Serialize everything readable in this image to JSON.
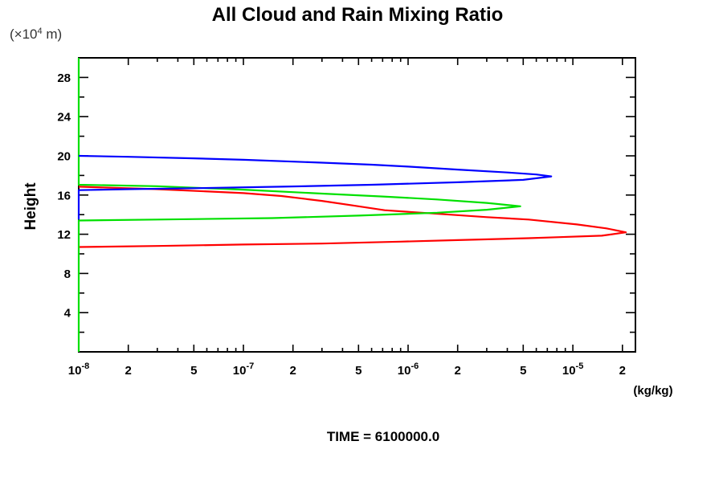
{
  "title": "All Cloud and Rain Mixing Ratio",
  "labels": {
    "y_axis": "Height",
    "y_unit": {
      "pre": "(×10",
      "exp": "4",
      "post": " m)"
    },
    "x_unit": "(kg/kg)",
    "time": "TIME = 6100000.0"
  },
  "colors": {
    "frame": "#000000",
    "series_red": "#ff0000",
    "series_green": "#00e000",
    "series_blue": "#0000ff"
  },
  "chart_data": {
    "type": "line",
    "title": "All Cloud and Rain Mixing Ratio",
    "xlabel": "(kg/kg)",
    "ylabel": "Height (×10^4 m)",
    "x_scale": "log",
    "xlim": [
      1e-08,
      2.4e-05
    ],
    "ylim": [
      0,
      30
    ],
    "grid": false,
    "legend": false,
    "annotation": "TIME = 6100000.0",
    "x_ticks": [
      {
        "v": 1e-08,
        "exp": "-8",
        "major": true
      },
      {
        "v": 2e-08,
        "label": "2",
        "major": true
      },
      {
        "v": 3e-08
      },
      {
        "v": 4e-08
      },
      {
        "v": 5e-08,
        "label": "5",
        "major": true
      },
      {
        "v": 6e-08
      },
      {
        "v": 7e-08
      },
      {
        "v": 8e-08
      },
      {
        "v": 9e-08
      },
      {
        "v": 1e-07,
        "exp": "-7",
        "major": true
      },
      {
        "v": 2e-07,
        "label": "2",
        "major": true
      },
      {
        "v": 3e-07
      },
      {
        "v": 4e-07
      },
      {
        "v": 5e-07,
        "label": "5",
        "major": true
      },
      {
        "v": 6e-07
      },
      {
        "v": 7e-07
      },
      {
        "v": 8e-07
      },
      {
        "v": 9e-07
      },
      {
        "v": 1e-06,
        "exp": "-6",
        "major": true
      },
      {
        "v": 2e-06,
        "label": "2",
        "major": true
      },
      {
        "v": 3e-06
      },
      {
        "v": 4e-06
      },
      {
        "v": 5e-06,
        "label": "5",
        "major": true
      },
      {
        "v": 6e-06
      },
      {
        "v": 7e-06
      },
      {
        "v": 8e-06
      },
      {
        "v": 9e-06
      },
      {
        "v": 1e-05,
        "exp": "-5",
        "major": true
      },
      {
        "v": 2e-05,
        "label": "2",
        "major": true
      }
    ],
    "y_ticks": [
      {
        "v": 2
      },
      {
        "v": 4,
        "label": "4",
        "major": true
      },
      {
        "v": 6
      },
      {
        "v": 8,
        "label": "8",
        "major": true
      },
      {
        "v": 10
      },
      {
        "v": 12,
        "label": "12",
        "major": true
      },
      {
        "v": 14
      },
      {
        "v": 16,
        "label": "16",
        "major": true
      },
      {
        "v": 18
      },
      {
        "v": 20,
        "label": "20",
        "major": true
      },
      {
        "v": 22
      },
      {
        "v": 24,
        "label": "24",
        "major": true
      },
      {
        "v": 26
      },
      {
        "v": 28,
        "label": "28",
        "major": true
      }
    ],
    "series": [
      {
        "name": "red",
        "color": "#ff0000",
        "peak": {
          "value": 2.1e-05,
          "height": 12.2
        },
        "layer": [
          10.7,
          16.85
        ],
        "points": [
          [
            1e-08,
            16.85
          ],
          [
            3e-08,
            16.6
          ],
          [
            1e-07,
            16.2
          ],
          [
            1.7e-07,
            15.9
          ],
          [
            3e-07,
            15.4
          ],
          [
            5e-07,
            14.85
          ],
          [
            7.2e-07,
            14.45
          ],
          [
            1.8e-06,
            14.0
          ],
          [
            3e-06,
            13.75
          ],
          [
            5.4e-06,
            13.5
          ],
          [
            1.06e-05,
            13.0
          ],
          [
            1.6e-05,
            12.6
          ],
          [
            2.1e-05,
            12.2
          ],
          [
            1.5e-05,
            11.85
          ],
          [
            8e-06,
            11.7
          ],
          [
            5.4e-06,
            11.6
          ],
          [
            2e-06,
            11.4
          ],
          [
            9e-07,
            11.25
          ],
          [
            3e-07,
            11.05
          ],
          [
            1e-07,
            10.95
          ],
          [
            3e-08,
            10.8
          ],
          [
            1e-08,
            10.7
          ]
        ]
      },
      {
        "name": "green",
        "color": "#00e000",
        "peak": {
          "value": 4.8e-06,
          "height": 14.85
        },
        "layer": [
          13.4,
          17.05
        ],
        "points": [
          [
            1e-08,
            30
          ],
          [
            1e-08,
            17.05
          ],
          [
            3e-08,
            16.9
          ],
          [
            1e-07,
            16.55
          ],
          [
            3e-07,
            16.15
          ],
          [
            7e-07,
            15.85
          ],
          [
            1.5e-06,
            15.55
          ],
          [
            3e-06,
            15.2
          ],
          [
            4.8e-06,
            14.85
          ],
          [
            3e-06,
            14.5
          ],
          [
            1.5e-06,
            14.2
          ],
          [
            5e-07,
            13.9
          ],
          [
            1.5e-07,
            13.65
          ],
          [
            3e-08,
            13.5
          ],
          [
            1e-08,
            13.4
          ],
          [
            1e-08,
            0
          ]
        ]
      },
      {
        "name": "blue",
        "color": "#0000ff",
        "peak": {
          "value": 7.4e-06,
          "height": 17.9
        },
        "layer": [
          16.5,
          20.0
        ],
        "points": [
          [
            1e-08,
            20.0
          ],
          [
            2e-08,
            19.9
          ],
          [
            5e-08,
            19.75
          ],
          [
            1e-07,
            19.6
          ],
          [
            3e-07,
            19.3
          ],
          [
            6e-07,
            19.1
          ],
          [
            1e-06,
            18.9
          ],
          [
            2e-06,
            18.6
          ],
          [
            4e-06,
            18.3
          ],
          [
            6e-06,
            18.1
          ],
          [
            7.4e-06,
            17.9
          ],
          [
            5e-06,
            17.55
          ],
          [
            2e-06,
            17.3
          ],
          [
            6e-07,
            17.05
          ],
          [
            1.7e-07,
            16.85
          ],
          [
            5e-08,
            16.7
          ],
          [
            2e-08,
            16.6
          ],
          [
            1e-08,
            16.5
          ],
          [
            1e-08,
            13.5
          ]
        ]
      }
    ]
  }
}
